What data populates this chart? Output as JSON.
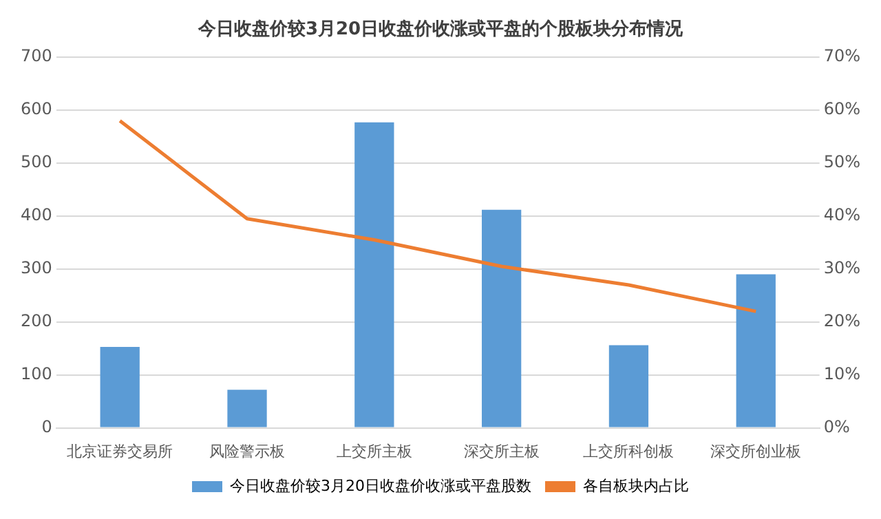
{
  "chart_data": {
    "type": "bar",
    "title": "今日收盘价较3月20日收盘价收涨或平盘的个股板块分布情况",
    "categories": [
      "北京证券交易所",
      "风险警示板",
      "上交所主板",
      "深交所主板",
      "上交所科创板",
      "深交所创业板"
    ],
    "series": [
      {
        "name": "今日收盘价较3月20日收盘价收涨或平盘股数",
        "color": "#5b9bd5",
        "values": [
          153,
          72,
          577,
          412,
          156,
          290
        ]
      },
      {
        "name": "各自板块内占比",
        "type": "line",
        "axis": "y2",
        "color": "#ed7d31",
        "values": [
          58,
          39.5,
          35.5,
          30.5,
          27,
          22
        ]
      }
    ],
    "ylim": [
      0,
      700
    ],
    "yticks": [
      0,
      100,
      200,
      300,
      400,
      500,
      600,
      700
    ],
    "y2lim": [
      0,
      70
    ],
    "y2ticks": [
      {
        "value": 0,
        "label": "0%"
      },
      {
        "value": 10,
        "label": "10%"
      },
      {
        "value": 20,
        "label": "20%"
      },
      {
        "value": 30,
        "label": "30%"
      },
      {
        "value": 40,
        "label": "40%"
      },
      {
        "value": 50,
        "label": "50%"
      },
      {
        "value": 60,
        "label": "60%"
      },
      {
        "value": 70,
        "label": "70%"
      }
    ],
    "grid": "y",
    "legend": "bottom",
    "marker": "none"
  }
}
